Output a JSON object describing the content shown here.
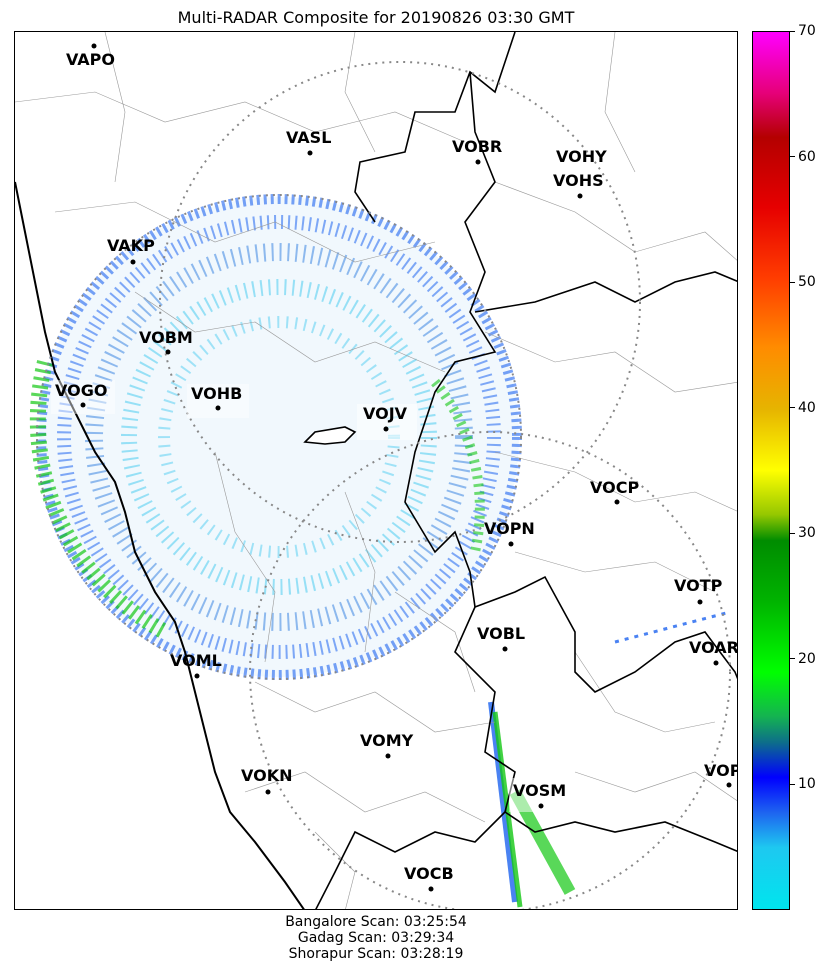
{
  "title": "Multi-RADAR Composite for 20190826 03:30 GMT",
  "stations": [
    {
      "code": "VAPO"
    },
    {
      "code": "VASL"
    },
    {
      "code": "VOBR"
    },
    {
      "code": "VOHY"
    },
    {
      "code": "VOHS"
    },
    {
      "code": "VAKP"
    },
    {
      "code": "VOBM"
    },
    {
      "code": "VOGO"
    },
    {
      "code": "VOHB"
    },
    {
      "code": "VOJV"
    },
    {
      "code": "VOCP"
    },
    {
      "code": "VOPN"
    },
    {
      "code": "VOTP"
    },
    {
      "code": "VOBL"
    },
    {
      "code": "VOAR"
    },
    {
      "code": "VOML"
    },
    {
      "code": "VOMY"
    },
    {
      "code": "VOKN"
    },
    {
      "code": "VOPC"
    },
    {
      "code": "VOSM"
    },
    {
      "code": "VOCB"
    }
  ],
  "colorbar": {
    "min": 0,
    "max": 70,
    "ticks": [
      "10",
      "20",
      "30",
      "40",
      "50",
      "60",
      "70"
    ]
  },
  "footer": {
    "line1": "Bangalore Scan: 03:25:54",
    "line2": "Gadag Scan: 03:29:34",
    "line3": "Shorapur Scan: 03:28:19"
  },
  "colors": {
    "echo_blue": "#1e64f0",
    "echo_cyan": "#3cc8f0",
    "echo_green": "#14c814",
    "coastline": "#000000",
    "range_ring": "#888888"
  }
}
